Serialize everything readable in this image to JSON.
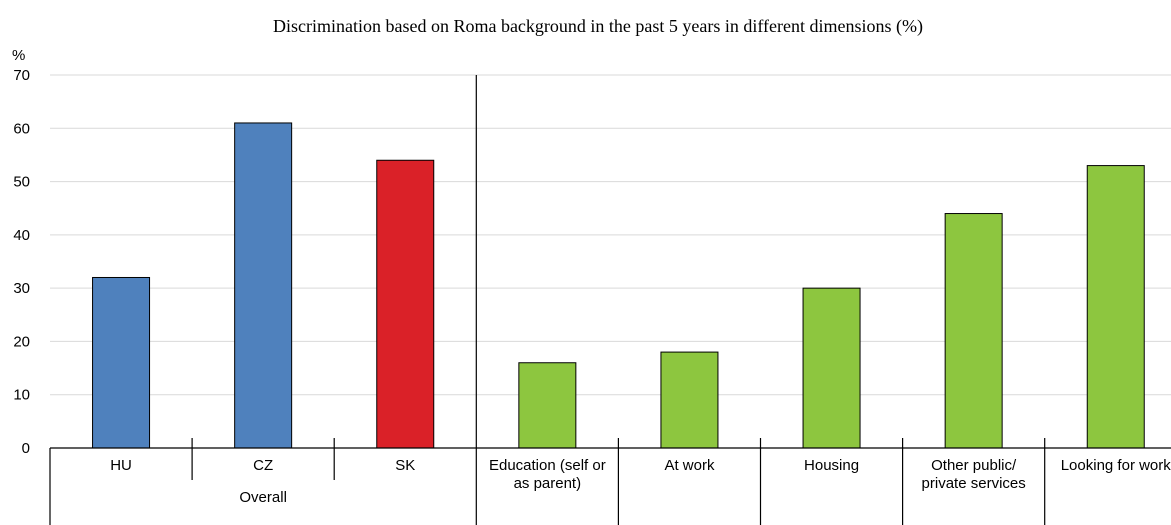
{
  "chart_data": {
    "type": "bar",
    "title": "Discrimination based on Roma background in the past 5 years in different dimensions (%)",
    "ylabel": "%",
    "ylim": [
      0,
      70
    ],
    "yticks": [
      0,
      10,
      20,
      30,
      40,
      50,
      60,
      70
    ],
    "grid": true,
    "groups": [
      {
        "label": "Overall",
        "bars": [
          {
            "category": "HU",
            "value": 32,
            "color": "#4f81bd"
          },
          {
            "category": "CZ",
            "value": 61,
            "color": "#4f81bd"
          },
          {
            "category": "SK",
            "value": 54,
            "color": "#da2128"
          }
        ]
      },
      {
        "label": "",
        "bars": [
          {
            "category": "Education (self or as parent)",
            "value": 16,
            "color": "#8dc63f"
          },
          {
            "category": "At work",
            "value": 18,
            "color": "#8dc63f"
          },
          {
            "category": "Housing",
            "value": 30,
            "color": "#8dc63f"
          },
          {
            "category": "Other public/ private services",
            "value": 44,
            "color": "#8dc63f"
          },
          {
            "category": "Looking for work",
            "value": 53,
            "color": "#8dc63f"
          }
        ]
      }
    ]
  }
}
